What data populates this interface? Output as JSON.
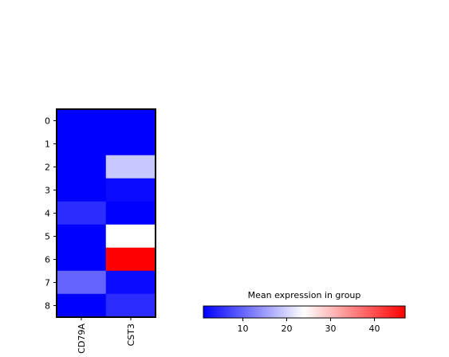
{
  "chart_data": {
    "type": "heatmap",
    "rows": [
      "0",
      "1",
      "2",
      "3",
      "4",
      "5",
      "6",
      "7",
      "8"
    ],
    "columns": [
      "CD79A",
      "CST3"
    ],
    "values": [
      [
        1.0,
        1.0
      ],
      [
        1.0,
        1.0
      ],
      [
        1.0,
        19.0
      ],
      [
        1.0,
        2.0
      ],
      [
        5.0,
        1.0
      ],
      [
        1.0,
        24.0
      ],
      [
        1.0,
        47.0
      ],
      [
        10.0,
        2.0
      ],
      [
        1.0,
        5.0
      ]
    ],
    "colormap": {
      "name": "bwr",
      "low_color": "#0000ff",
      "mid_color": "#ffffff",
      "high_color": "#ff0000"
    },
    "colorbar": {
      "title": "Mean expression in group",
      "range": [
        1,
        47
      ],
      "ticks": [
        10,
        20,
        30,
        40
      ],
      "tick_labels": [
        "10",
        "20",
        "30",
        "40"
      ]
    }
  }
}
